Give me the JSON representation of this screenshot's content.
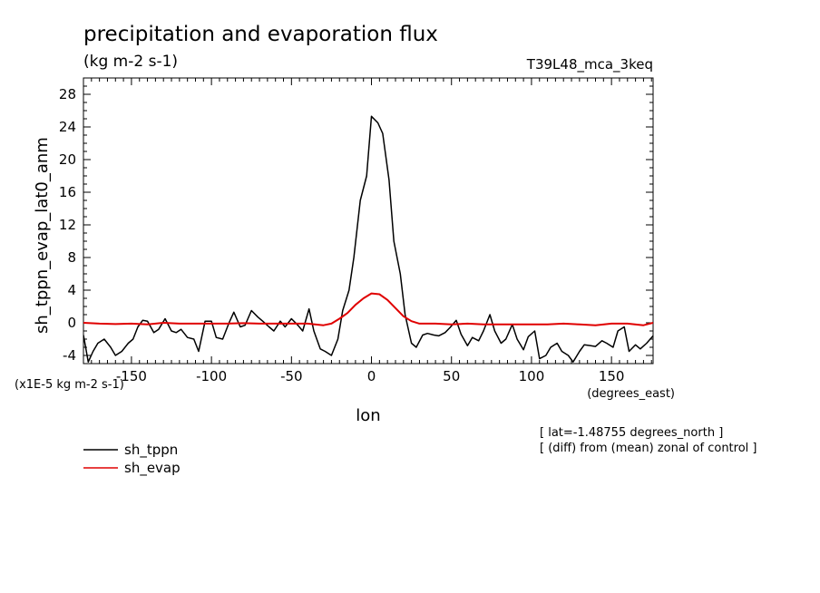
{
  "chart_data": {
    "type": "line",
    "title": "precipitation and evaporation flux",
    "units": "(kg m-2 s-1)",
    "run_label": "T39L48_mca_3keq",
    "ylabel": "sh_tppn_evap_lat0_anm",
    "xlabel": "lon",
    "x_units": "(degrees_east)",
    "y_scale_note": "(x1E-5 kg m-2 s-1)",
    "xlim": [
      -180,
      176
    ],
    "ylim": [
      -5,
      30
    ],
    "x_ticks": [
      -150,
      -100,
      -50,
      0,
      50,
      100,
      150
    ],
    "x_tick_labels": [
      "-150",
      "-100",
      "-50",
      "0",
      "50",
      "100",
      "150"
    ],
    "y_ticks": [
      -4,
      0,
      4,
      8,
      12,
      16,
      20,
      24,
      28
    ],
    "y_tick_labels": [
      "-4",
      "0",
      "4",
      "8",
      "12",
      "16",
      "20",
      "24",
      "28"
    ],
    "series": [
      {
        "name": "sh_tppn",
        "color": "#000000",
        "x": [
          -180,
          -177,
          -174,
          -171,
          -167,
          -163,
          -160,
          -156,
          -152,
          -149,
          -146,
          -143,
          -140,
          -136,
          -133,
          -129,
          -125,
          -122,
          -119,
          -115,
          -111,
          -108,
          -104,
          -100,
          -97,
          -93,
          -89,
          -86,
          -82,
          -79,
          -75,
          -71,
          -68,
          -64,
          -61,
          -57,
          -54,
          -50,
          -46,
          -43,
          -39,
          -36,
          -32,
          -29,
          -25,
          -21,
          -18,
          -14,
          -11,
          -7,
          -3,
          0,
          4,
          7,
          11,
          14,
          18,
          21,
          25,
          28,
          32,
          35,
          39,
          42,
          46,
          49,
          53,
          56,
          60,
          63,
          67,
          70,
          74,
          77,
          81,
          84,
          88,
          91,
          95,
          98,
          102,
          105,
          109,
          112,
          116,
          119,
          123,
          126,
          130,
          133,
          137,
          140,
          144,
          147,
          151,
          154,
          158,
          161,
          165,
          168,
          172,
          176
        ],
        "y": [
          -1.5,
          -4.8,
          -3.5,
          -2.5,
          -2,
          -3,
          -4,
          -3.5,
          -2.5,
          -2,
          -0.5,
          0.3,
          0.2,
          -1.2,
          -0.8,
          0.5,
          -1,
          -1.2,
          -0.8,
          -1.8,
          -2,
          -3.5,
          0.2,
          0.2,
          -1.8,
          -2,
          0,
          1.3,
          -0.5,
          -0.3,
          1.5,
          0.7,
          0.2,
          -0.5,
          -1,
          0.2,
          -0.5,
          0.5,
          -0.3,
          -1,
          1.7,
          -1,
          -3.2,
          -3.5,
          -4,
          -2,
          1.5,
          4,
          8,
          15,
          18,
          25.3,
          24.5,
          23.2,
          17.5,
          10,
          6,
          1,
          -2.5,
          -3,
          -1.5,
          -1.3,
          -1.5,
          -1.6,
          -1.2,
          -0.6,
          0.3,
          -1.4,
          -2.8,
          -1.8,
          -2.2,
          -1,
          1,
          -1,
          -2.5,
          -2,
          -0.2,
          -2,
          -3.3,
          -1.7,
          -1,
          -4.4,
          -4,
          -3,
          -2.5,
          -3.5,
          -4,
          -4.8,
          -3.5,
          -2.7,
          -2.8,
          -2.9,
          -2.2,
          -2.5,
          -3,
          -1,
          -0.5,
          -3.5,
          -2.7,
          -3.2,
          -2.5,
          -1.6
        ]
      },
      {
        "name": "sh_evap",
        "color": "#e00000",
        "x": [
          -180,
          -170,
          -160,
          -150,
          -140,
          -130,
          -120,
          -110,
          -100,
          -90,
          -80,
          -70,
          -60,
          -50,
          -40,
          -30,
          -25,
          -20,
          -15,
          -10,
          -5,
          0,
          5,
          10,
          15,
          20,
          25,
          30,
          40,
          50,
          60,
          70,
          80,
          90,
          100,
          110,
          120,
          130,
          140,
          150,
          160,
          170,
          176
        ],
        "y": [
          0,
          -0.1,
          -0.15,
          -0.1,
          -0.2,
          0,
          -0.1,
          -0.1,
          -0.1,
          -0.1,
          -0.05,
          -0.1,
          -0.1,
          -0.1,
          -0.1,
          -0.3,
          -0.1,
          0.5,
          1.2,
          2.2,
          3.0,
          3.6,
          3.5,
          2.8,
          1.8,
          0.8,
          0.2,
          -0.1,
          -0.1,
          -0.2,
          -0.1,
          -0.2,
          -0.2,
          -0.2,
          -0.2,
          -0.2,
          -0.1,
          -0.2,
          -0.3,
          -0.1,
          -0.1,
          -0.3,
          0
        ]
      }
    ],
    "annotations": [
      "[ lat=-1.48755 degrees_north ]",
      "[ (diff) from (mean) zonal of control ]"
    ]
  }
}
